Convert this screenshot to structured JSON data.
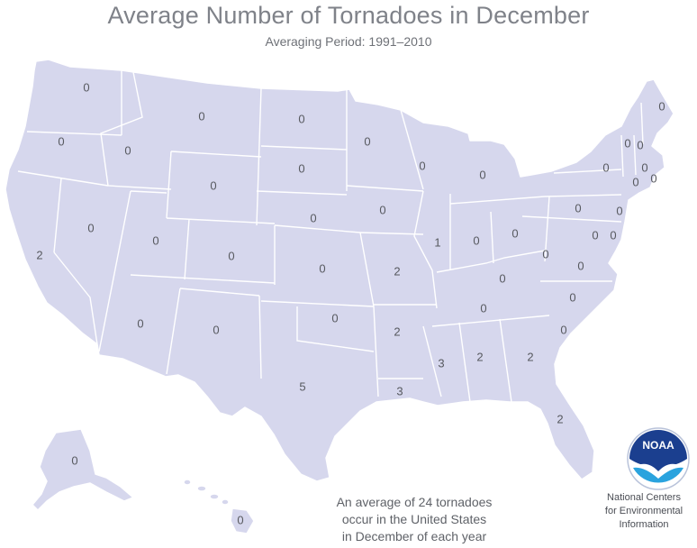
{
  "header": {
    "title": "Average Number of Tornadoes in December",
    "subtitle": "Averaging Period:  1991–2010"
  },
  "map": {
    "fill_color": "#d6d7ed",
    "border_color": "#ffffff",
    "values": {
      "WA": "0",
      "OR": "0",
      "CA": "2",
      "ID": "0",
      "NV": "0",
      "MT": "0",
      "WY": "0",
      "UT": "0",
      "AZ": "0",
      "CO": "0",
      "NM": "0",
      "ND": "0",
      "SD": "0",
      "NE": "0",
      "KS": "0",
      "OK": "0",
      "TX": "5",
      "MN": "0",
      "IA": "0",
      "MO": "2",
      "AR": "2",
      "LA": "3",
      "WI": "0",
      "IL": "1",
      "MI": "0",
      "IN": "0",
      "OH": "0",
      "KY": "0",
      "TN": "0",
      "MS": "3",
      "AL": "2",
      "GA": "2",
      "FL": "2",
      "SC": "0",
      "NC": "0",
      "VA": "0",
      "WV": "0",
      "MD": "0",
      "DE": "0",
      "PA": "0",
      "NJ": "0",
      "NY": "0",
      "CT": "0",
      "RI": "0",
      "MA": "0",
      "VT": "0",
      "NH": "0",
      "ME": "0",
      "AK": "0",
      "HI": "0"
    }
  },
  "summary": {
    "line1": "An average of 24 tornadoes",
    "line2": "occur in the United States",
    "line3": "in December of each year"
  },
  "logo": {
    "text": "NOAA",
    "colors": {
      "dark_blue": "#1b3f8f",
      "light_blue": "#2aa3de"
    }
  },
  "credit": {
    "line1": "National Centers",
    "line2": "for Environmental",
    "line3": "Information"
  }
}
